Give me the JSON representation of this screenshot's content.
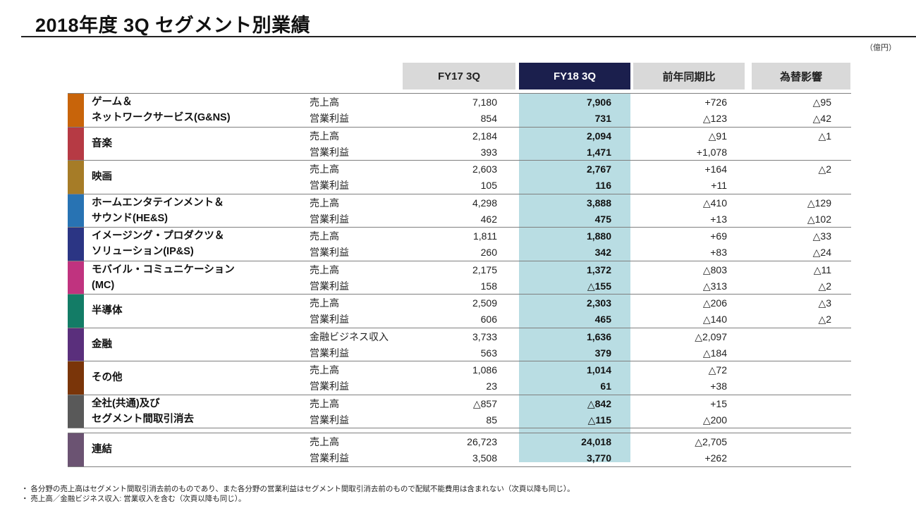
{
  "title": "2018年度 3Q セグメント別業績",
  "unit": "（億円）",
  "columns": {
    "fy17": "FY17 3Q",
    "fy18": "FY18 3Q",
    "yoy": "前年同期比",
    "fx": "為替影響"
  },
  "colors": {
    "header_bg": "#d9d9d9",
    "highlight_header_bg": "#1b1f4d",
    "highlight_col_bg": "#b9dde3"
  },
  "segments": [
    {
      "name": "ゲーム＆\nネットワークサービス(G&NS)",
      "color": "#c8640a",
      "rows": [
        {
          "label": "売上高",
          "fy17": "7,180",
          "fy18": "7,906",
          "yoy": "+726",
          "fx": "△95"
        },
        {
          "label": "営業利益",
          "fy17": "854",
          "fy18": "731",
          "yoy": "△123",
          "fx": "△42"
        }
      ]
    },
    {
      "name": "音楽",
      "color": "#b63a44",
      "rows": [
        {
          "label": "売上高",
          "fy17": "2,184",
          "fy18": "2,094",
          "yoy": "△91",
          "fx": "△1"
        },
        {
          "label": "営業利益",
          "fy17": "393",
          "fy18": "1,471",
          "yoy": "+1,078",
          "fx": ""
        }
      ]
    },
    {
      "name": "映画",
      "color": "#a67c27",
      "rows": [
        {
          "label": "売上高",
          "fy17": "2,603",
          "fy18": "2,767",
          "yoy": "+164",
          "fx": "△2"
        },
        {
          "label": "営業利益",
          "fy17": "105",
          "fy18": "116",
          "yoy": "+11",
          "fx": ""
        }
      ]
    },
    {
      "name": "ホームエンタテインメント＆\nサウンド(HE&S)",
      "color": "#2873b3",
      "rows": [
        {
          "label": "売上高",
          "fy17": "4,298",
          "fy18": "3,888",
          "yoy": "△410",
          "fx": "△129"
        },
        {
          "label": "営業利益",
          "fy17": "462",
          "fy18": "475",
          "yoy": "+13",
          "fx": "△102"
        }
      ]
    },
    {
      "name": "イメージング・プロダクツ＆\nソリューション(IP&S)",
      "color": "#2b3584",
      "rows": [
        {
          "label": "売上高",
          "fy17": "1,811",
          "fy18": "1,880",
          "yoy": "+69",
          "fx": "△33"
        },
        {
          "label": "営業利益",
          "fy17": "260",
          "fy18": "342",
          "yoy": "+83",
          "fx": "△24"
        }
      ]
    },
    {
      "name": "モバイル・コミュニケーション\n(MC)",
      "color": "#c0337f",
      "rows": [
        {
          "label": "売上高",
          "fy17": "2,175",
          "fy18": "1,372",
          "yoy": "△803",
          "fx": "△11"
        },
        {
          "label": "営業利益",
          "fy17": "158",
          "fy18": "△155",
          "yoy": "△313",
          "fx": "△2"
        }
      ]
    },
    {
      "name": "半導体",
      "color": "#137c66",
      "rows": [
        {
          "label": "売上高",
          "fy17": "2,509",
          "fy18": "2,303",
          "yoy": "△206",
          "fx": "△3"
        },
        {
          "label": "営業利益",
          "fy17": "606",
          "fy18": "465",
          "yoy": "△140",
          "fx": "△2"
        }
      ]
    },
    {
      "name": "金融",
      "color": "#5a2f7c",
      "rows": [
        {
          "label": "金融ビジネス収入",
          "fy17": "3,733",
          "fy18": "1,636",
          "yoy": "△2,097",
          "fx": ""
        },
        {
          "label": "営業利益",
          "fy17": "563",
          "fy18": "379",
          "yoy": "△184",
          "fx": ""
        }
      ]
    },
    {
      "name": "その他",
      "color": "#7a3509",
      "rows": [
        {
          "label": "売上高",
          "fy17": "1,086",
          "fy18": "1,014",
          "yoy": "△72",
          "fx": ""
        },
        {
          "label": "営業利益",
          "fy17": "23",
          "fy18": "61",
          "yoy": "+38",
          "fx": ""
        }
      ]
    },
    {
      "name": "全社(共通)及び\nセグメント間取引消去",
      "color": "#595959",
      "rows": [
        {
          "label": "売上高",
          "fy17": "△857",
          "fy18": "△842",
          "yoy": "+15",
          "fx": ""
        },
        {
          "label": "営業利益",
          "fy17": "85",
          "fy18": "△115",
          "yoy": "△200",
          "fx": ""
        }
      ]
    }
  ],
  "total": {
    "name": "連結",
    "color": "#6b5372",
    "rows": [
      {
        "label": "売上高",
        "fy17": "26,723",
        "fy18": "24,018",
        "yoy": "△2,705",
        "fx": ""
      },
      {
        "label": "営業利益",
        "fy17": "3,508",
        "fy18": "3,770",
        "yoy": "+262",
        "fx": ""
      }
    ]
  },
  "notes": [
    "・ 各分野の売上高はセグメント間取引消去前のものであり、また各分野の営業利益はセグメント間取引消去前のもので配賦不能費用は含まれない（次頁以降も同じ）。",
    "・ 売上高／金融ビジネス収入: 営業収入を含む（次頁以降も同じ）。"
  ]
}
